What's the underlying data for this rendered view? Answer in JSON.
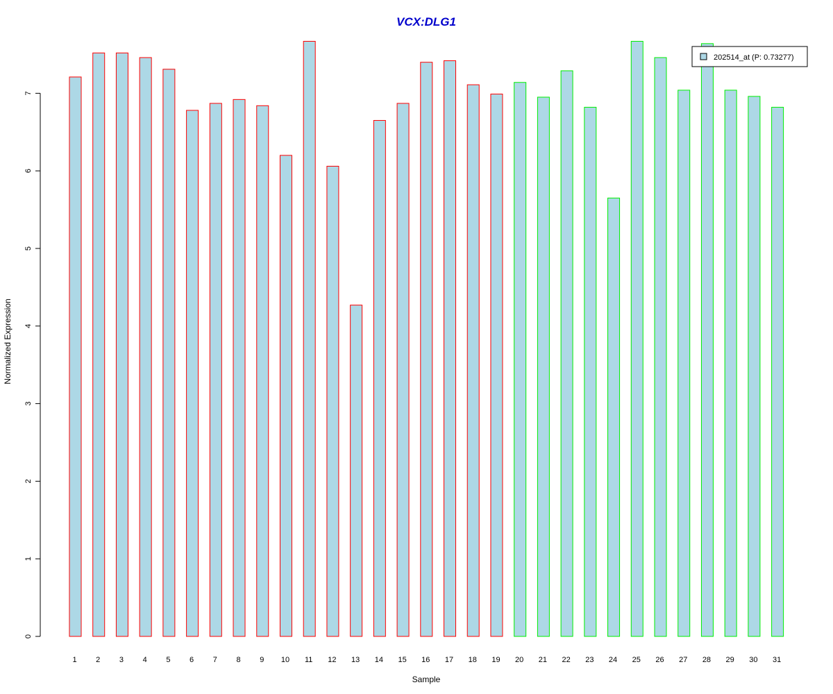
{
  "colors": {
    "title": "#0000cc",
    "bar_fill": "#add8e6",
    "group1_border": "#ff0000",
    "group2_border": "#00ee00",
    "axis": "#000000"
  },
  "chart_data": {
    "type": "bar",
    "title": "VCX:DLG1",
    "xlabel": "Sample",
    "ylabel": "Normalized Expression",
    "ylim": [
      0,
      7.7
    ],
    "yticks": [
      0,
      1,
      2,
      3,
      4,
      5,
      6,
      7
    ],
    "grid": false,
    "legend_position": "top-right",
    "categories": [
      "1",
      "2",
      "3",
      "4",
      "5",
      "6",
      "7",
      "8",
      "9",
      "10",
      "11",
      "12",
      "13",
      "14",
      "15",
      "16",
      "17",
      "18",
      "19",
      "20",
      "21",
      "22",
      "23",
      "24",
      "25",
      "26",
      "27",
      "28",
      "29",
      "30",
      "31"
    ],
    "series": [
      {
        "name": "202514_at (P: 0.73277)",
        "values": [
          7.21,
          7.52,
          7.52,
          7.46,
          7.31,
          6.78,
          6.87,
          6.92,
          6.84,
          6.2,
          7.67,
          6.06,
          4.27,
          6.65,
          6.87,
          7.4,
          7.42,
          7.11,
          6.99,
          7.14,
          6.95,
          7.29,
          6.82,
          5.65,
          7.67,
          7.46,
          7.04,
          7.64,
          7.04,
          6.96,
          6.82
        ]
      }
    ],
    "groups": [
      1,
      1,
      1,
      1,
      1,
      1,
      1,
      1,
      1,
      1,
      1,
      1,
      1,
      1,
      1,
      1,
      1,
      1,
      1,
      2,
      2,
      2,
      2,
      2,
      2,
      2,
      2,
      2,
      2,
      2,
      2
    ]
  }
}
